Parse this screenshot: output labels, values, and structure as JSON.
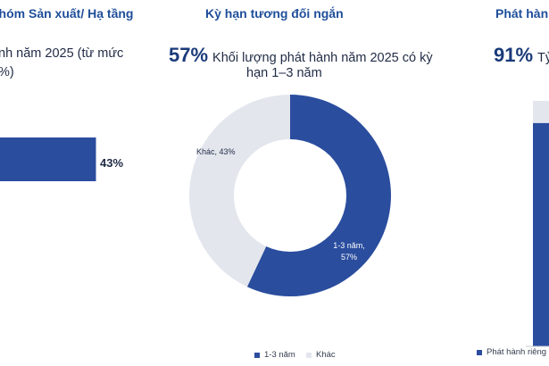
{
  "panels": {
    "left": {
      "title_fragment": "nhóm Sản xuất/ Hạ tầng",
      "headline_fragment_1": "nh năm 2025 (từ mức",
      "headline_fragment_2": "%)",
      "bar_label": "43%"
    },
    "center": {
      "title": "Kỳ hạn tương đối ngắn",
      "headline_big": "57%",
      "headline_text_1": "Khối lượng phát hành năm 2025 có kỳ",
      "headline_text_2": "hạn 1–3 năm",
      "slice_label_main": "1-3 năm,",
      "slice_label_main_pct": "57%",
      "slice_label_other": "Khác, 43%",
      "legend": [
        "1-3 năm",
        "Khác"
      ]
    },
    "right": {
      "title_fragment": "Phát hành",
      "headline_big": "91%",
      "headline_fragment": "Tỷ",
      "legend_fragment": "Phát hành riêng"
    }
  },
  "colors": {
    "primary": "#2a4d9e",
    "secondary": "#e3e6ed",
    "title": "#1f4e9a"
  },
  "chart_data": [
    {
      "type": "bar",
      "orientation": "horizontal",
      "categories": [
        ""
      ],
      "values": [
        43
      ],
      "unit": "%",
      "xlim": [
        0,
        100
      ]
    },
    {
      "type": "pie",
      "donut": true,
      "title": "Kỳ hạn tương đối ngắn",
      "categories": [
        "1-3 năm",
        "Khác"
      ],
      "values": [
        57,
        43
      ],
      "unit": "%",
      "legend_position": "bottom"
    },
    {
      "type": "bar",
      "orientation": "vertical",
      "stacked": true,
      "series": [
        {
          "name": "Phát hành riêng",
          "values": [
            91
          ]
        },
        {
          "name": "",
          "values": [
            9
          ]
        }
      ],
      "unit": "%"
    }
  ]
}
